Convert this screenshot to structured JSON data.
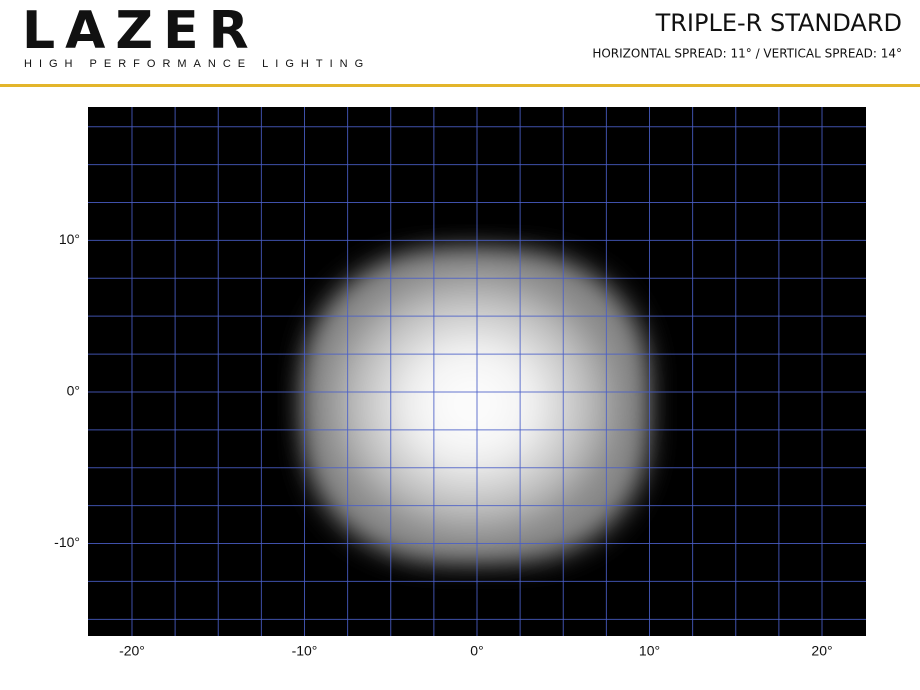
{
  "header": {
    "brand": "LAZER",
    "tagline": "HIGH PERFORMANCE LIGHTING",
    "title": "TRIPLE-R STANDARD",
    "subtitle": "HORIZONTAL SPREAD: 11° / VERTICAL SPREAD: 14°"
  },
  "chart_data": {
    "type": "beam-pattern",
    "xlim": [
      -22.55,
      22.55
    ],
    "ylim": [
      -16.1,
      18.8
    ],
    "xticks": [
      {
        "value": -20,
        "label": "-20°"
      },
      {
        "value": -10,
        "label": "-10°"
      },
      {
        "value": 0,
        "label": "0°"
      },
      {
        "value": 10,
        "label": "10°"
      },
      {
        "value": 20,
        "label": "20°"
      }
    ],
    "yticks": [
      {
        "value": 10,
        "label": "10°"
      },
      {
        "value": 0,
        "label": "0°"
      },
      {
        "value": -10,
        "label": "-10°"
      }
    ],
    "xgrid": [
      -20,
      -17.5,
      -15,
      -12.5,
      -10,
      -7.5,
      -5,
      -2.5,
      0,
      2.5,
      5,
      7.5,
      10,
      12.5,
      15,
      17.5,
      20
    ],
    "ygrid": [
      17.5,
      15,
      12.5,
      10,
      7.5,
      5,
      2.5,
      0,
      -2.5,
      -5,
      -7.5,
      -10,
      -12.5,
      -15
    ],
    "grid": true,
    "grid_color": "#4a5fc8",
    "background": "#000000"
  }
}
